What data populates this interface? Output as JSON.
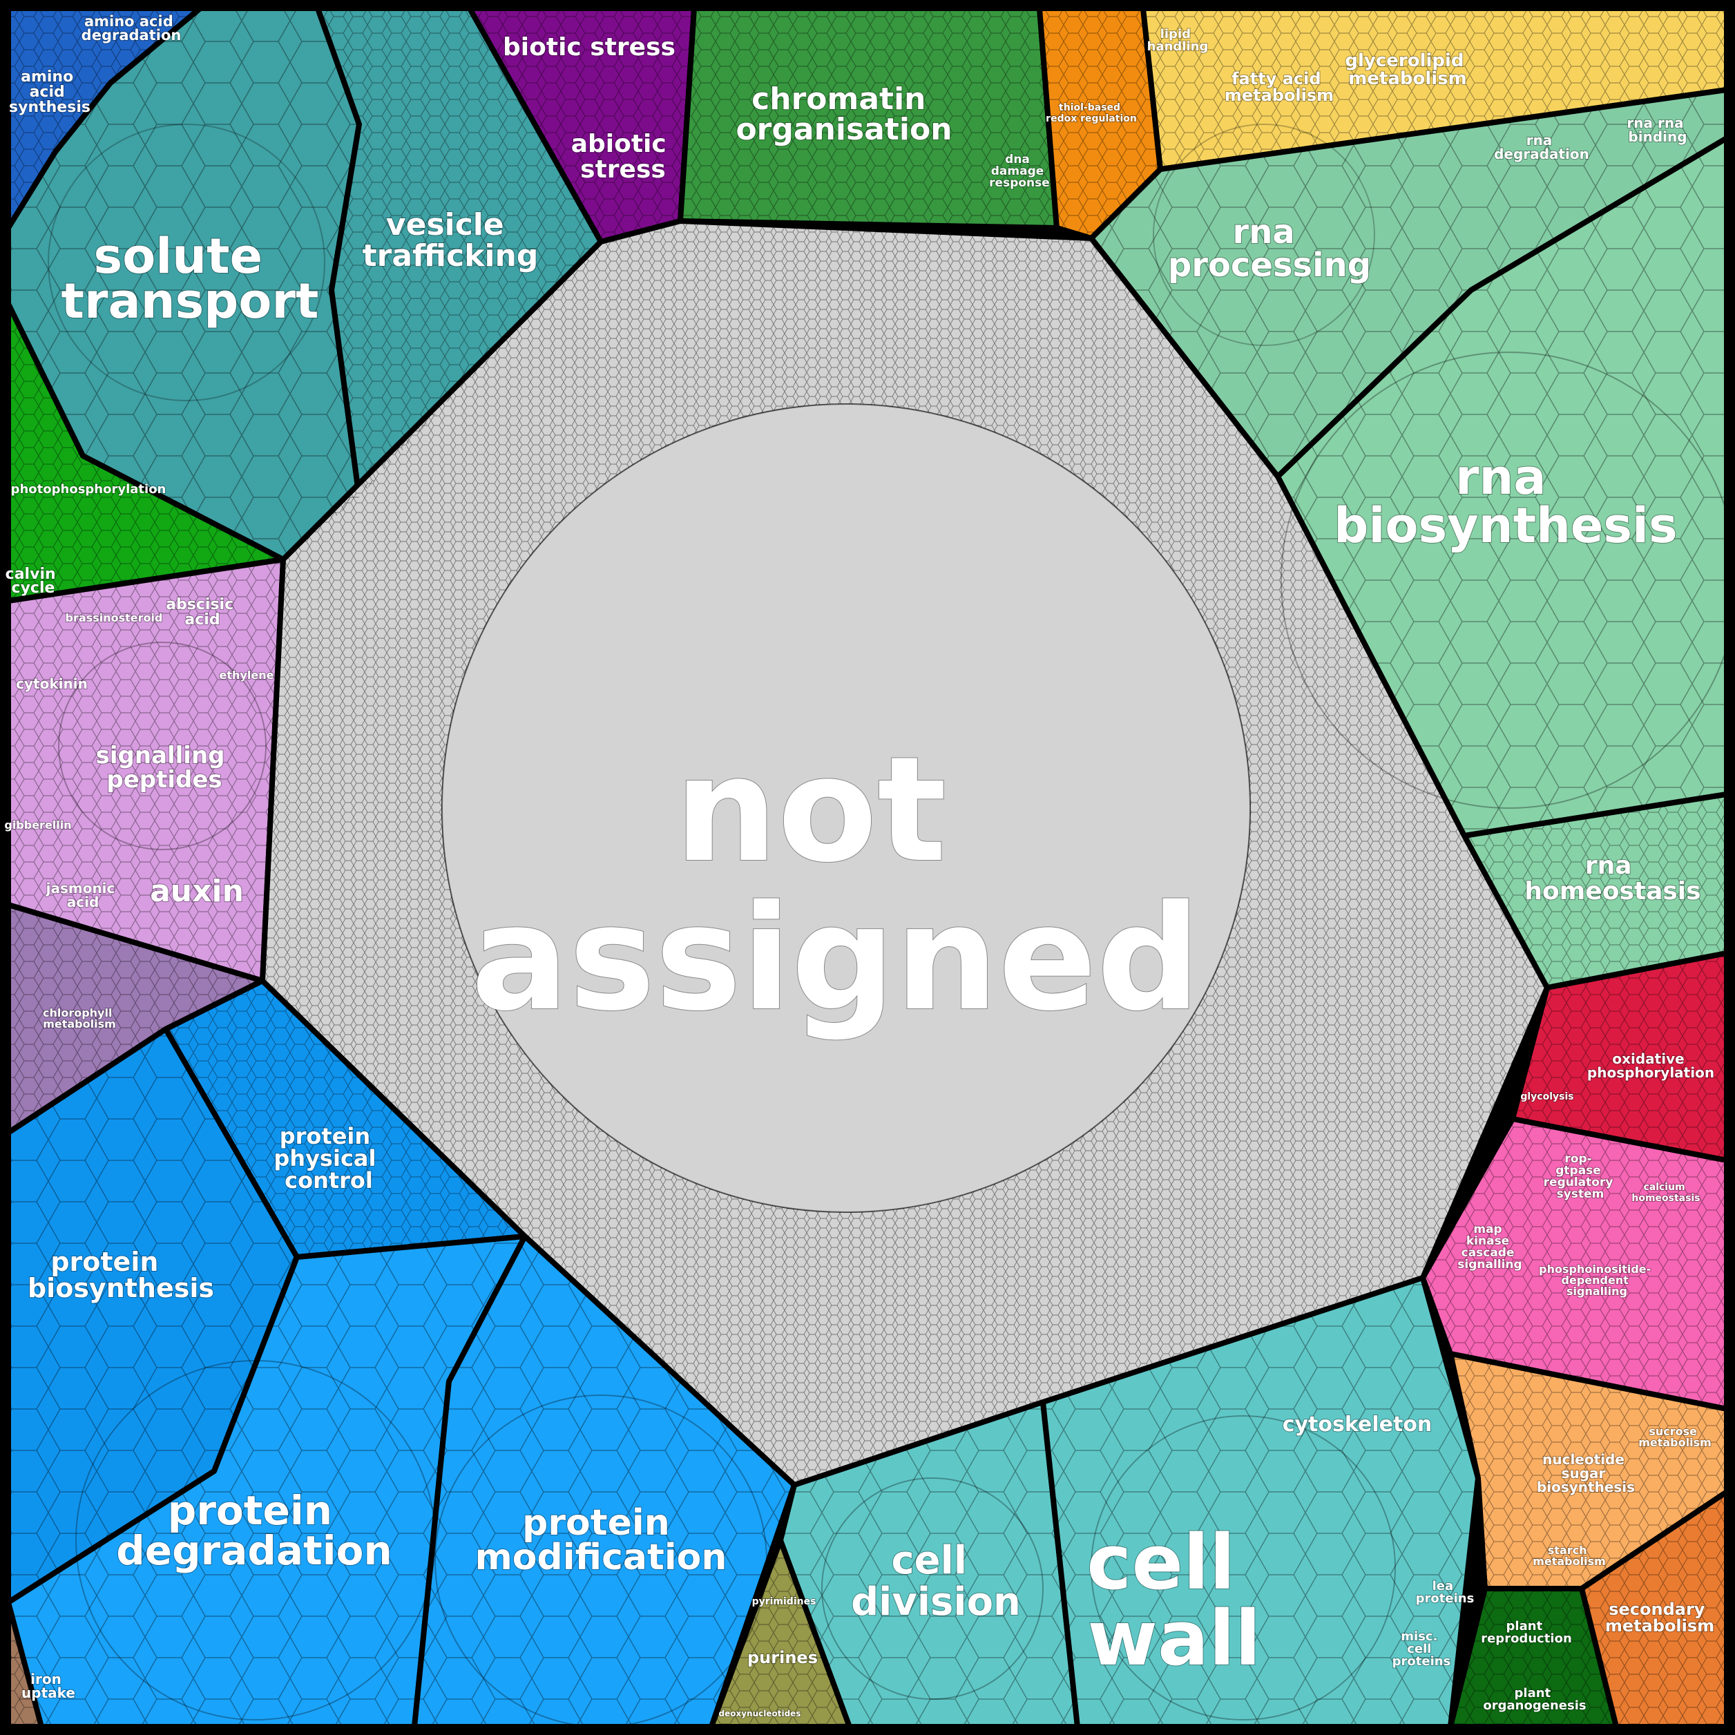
{
  "categories": [
    {
      "id": "amino",
      "color": "#1f63c7",
      "labels": [
        "amino",
        "acid",
        "synthesis"
      ],
      "minor": [
        "amino acid degradation"
      ]
    },
    {
      "id": "solute",
      "color": "#3fa2a5",
      "labels": [
        "solute",
        "transport"
      ]
    },
    {
      "id": "vesicle",
      "color": "#3fa2a5",
      "labels": [
        "vesicle",
        "trafficking"
      ]
    },
    {
      "id": "stress",
      "color": "#7d0c8c",
      "labels": [
        "biotic stress"
      ],
      "labels2": [
        "abiotic",
        "stress"
      ]
    },
    {
      "id": "chromatin",
      "color": "#37983f",
      "labels": [
        "chromatin",
        "organisation"
      ],
      "minor": [
        "dna",
        "damage",
        "response"
      ]
    },
    {
      "id": "redox",
      "color": "#f28c10",
      "labels": [
        "thiol-based",
        "redox regulation"
      ]
    },
    {
      "id": "lipid",
      "color": "#f7d35e",
      "labels": [
        "fatty acid",
        "metabolism"
      ],
      "labels2": [
        "glycerolipid",
        "metabolism"
      ],
      "minor": [
        "lipid",
        "handling"
      ]
    },
    {
      "id": "rnaproc",
      "color": "#82ccA4",
      "labels": [
        "rna",
        "processing"
      ],
      "minor": [
        "rna",
        "degradation"
      ],
      "minor2": [
        "rna rna",
        "binding"
      ]
    },
    {
      "id": "rnabio",
      "color": "#87d2a7",
      "labels": [
        "rna",
        "biosynthesis"
      ]
    },
    {
      "id": "rnahomeo",
      "color": "#87d2a7",
      "labels": [
        "rna",
        "homeostasis"
      ]
    },
    {
      "id": "photo",
      "color": "#11a814",
      "labels": [
        "photophosphorylation"
      ],
      "labels2": [
        "calvin",
        "cycle"
      ]
    },
    {
      "id": "phyto",
      "color": "#d79de0",
      "labels": [
        "signalling",
        "peptides"
      ],
      "labels2": [
        "auxin"
      ],
      "minor": [
        "cytokinin",
        "brassinosteroid",
        "ethylene",
        "gibberellin"
      ],
      "minor2": [
        "abscisic",
        "acid"
      ],
      "minor3": [
        "jasmonic",
        "acid"
      ]
    },
    {
      "id": "coenzyme",
      "color": "#9c7ab4",
      "labels": [
        "chlorophyll",
        "metabolism"
      ]
    },
    {
      "id": "protbio",
      "color": "#0f94ee",
      "labels": [
        "protein",
        "biosynthesis"
      ]
    },
    {
      "id": "protphys",
      "color": "#0f94ee",
      "labels": [
        "protein",
        "physical",
        "control"
      ]
    },
    {
      "id": "protdeg",
      "color": "#1aa3fa",
      "labels": [
        "protein",
        "degradation"
      ]
    },
    {
      "id": "protmod",
      "color": "#1aa3fa",
      "labels": [
        "protein",
        "modification"
      ]
    },
    {
      "id": "nucleo",
      "color": "#96984a",
      "labels": [
        "purines"
      ],
      "minor": [
        "pyrimidines",
        "deoxynucleotides"
      ]
    },
    {
      "id": "celldiv",
      "color": "#5fc8c7",
      "labels": [
        "cell",
        "division"
      ]
    },
    {
      "id": "cellwall",
      "color": "#5fc8c7",
      "labels": [
        "cell",
        "wall"
      ],
      "minor": [
        "cytoskeleton"
      ],
      "minor2": [
        "lea",
        "proteins"
      ],
      "minor3": [
        "misc.",
        "cell",
        "proteins"
      ]
    },
    {
      "id": "oxphos",
      "color": "#dc1b42",
      "labels": [
        "oxidative",
        "phosphorylation"
      ],
      "minor": [
        "glycolysis"
      ]
    },
    {
      "id": "signal",
      "color": "#f765b5",
      "labels": [
        "phosphoinositide-",
        "dependent",
        "signalling"
      ],
      "minor": [
        "map",
        "kinase",
        "cascade",
        "signalling"
      ],
      "minor2": [
        "rop-",
        "gtpase",
        "regulatory",
        "system"
      ],
      "minor3": [
        "calcium",
        "homeostasis"
      ]
    },
    {
      "id": "carb",
      "color": "#faae62",
      "labels": [
        "nucleotide",
        "sugar",
        "biosynthesis"
      ],
      "minor": [
        "sucrose",
        "metabolism"
      ],
      "minor2": [
        "starch",
        "metabolism"
      ]
    },
    {
      "id": "plantrepro",
      "color": "#0d6b12",
      "labels": [
        "plant",
        "reproduction"
      ],
      "labels2": [
        "plant",
        "organogenesis"
      ]
    },
    {
      "id": "secmet",
      "color": "#ea7c31",
      "labels": [
        "secondary",
        "metabolism"
      ]
    },
    {
      "id": "iron",
      "color": "#a3795e",
      "labels": [
        "iron",
        "uptake"
      ]
    },
    {
      "id": "notassigned",
      "color": "#d3d3d3",
      "labels": [
        "not",
        "assigned"
      ]
    }
  ]
}
